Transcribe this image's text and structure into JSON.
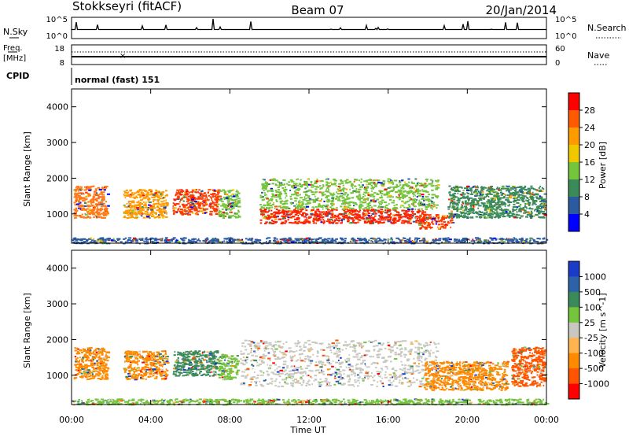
{
  "header": {
    "radar": "Stokkseyri (fitACF)",
    "beam": "Beam 07",
    "date": "20/Jan/2014"
  },
  "top_panels": {
    "nsky_label": "N.Sky",
    "nsearch_label": "N.Search",
    "nsky_ticks": [
      "10^5",
      "10^0"
    ],
    "nsearch_ticks": [
      "10^5",
      "10^0"
    ],
    "freq_label": "Freq.",
    "freq_unit": "[MHz]",
    "freq_ticks": [
      "18",
      "8"
    ],
    "nave_label": "Nave",
    "nave_ticks": [
      "60",
      "0"
    ],
    "cpid_label": "CPID",
    "cpid_text": "normal (fast) 151"
  },
  "chart_data": [
    {
      "type": "heatmap",
      "name": "power-panel",
      "ylabel": "Slant Range [km]",
      "x_range_hours": [
        0,
        24
      ],
      "ylim": [
        180,
        4500
      ],
      "y_ticks": [
        1000,
        2000,
        3000,
        4000
      ],
      "colorbar": {
        "label": "Power [dB]",
        "ticks": [
          "28",
          "24",
          "20",
          "16",
          "12",
          "8",
          "4"
        ],
        "colors": [
          "#ff0000",
          "#ff5a00",
          "#ff9a00",
          "#f0c800",
          "#74c43c",
          "#3a8a5a",
          "#2c5aa0",
          "#0000ff"
        ]
      },
      "regions": [
        {
          "t0": 0.1,
          "t1": 1.8,
          "r0": 900,
          "r1": 1800,
          "color": "#ff7a1a"
        },
        {
          "t0": 2.6,
          "t1": 4.8,
          "r0": 900,
          "r1": 1700,
          "color": "#ff9a00"
        },
        {
          "t0": 5.1,
          "t1": 7.4,
          "r0": 1000,
          "r1": 1700,
          "color": "#ff3a00"
        },
        {
          "t0": 7.4,
          "t1": 8.4,
          "r0": 900,
          "r1": 1700,
          "color": "#74c43c"
        },
        {
          "t0": 9.5,
          "t1": 17.8,
          "r0": 750,
          "r1": 1150,
          "color": "#ff2200"
        },
        {
          "t0": 9.5,
          "t1": 18.5,
          "r0": 1150,
          "r1": 2000,
          "color": "#74c43c"
        },
        {
          "t0": 17.5,
          "t1": 19.2,
          "r0": 600,
          "r1": 1000,
          "color": "#ff3a00"
        },
        {
          "t0": 19.0,
          "t1": 23.9,
          "r0": 900,
          "r1": 1800,
          "color": "#3a8a5a"
        },
        {
          "t0": 0.0,
          "t1": 24.0,
          "r0": 190,
          "r1": 350,
          "color": "#2c5aa0"
        }
      ]
    },
    {
      "type": "heatmap",
      "name": "velocity-panel",
      "ylabel": "Slant Range [km]",
      "xlabel": "Time UT",
      "x_range_hours": [
        0,
        24
      ],
      "x_ticks": [
        "00:00",
        "04:00",
        "08:00",
        "12:00",
        "16:00",
        "20:00",
        "00:00"
      ],
      "ylim": [
        180,
        4500
      ],
      "y_ticks": [
        1000,
        2000,
        3000,
        4000
      ],
      "colorbar": {
        "label": "Velocity [m s^-1]",
        "ticks": [
          "1000",
          "500",
          "100",
          "25",
          "-25",
          "-100",
          "-500",
          "-1000"
        ],
        "colors": [
          "#1a3cc8",
          "#2e62a8",
          "#3a8a5a",
          "#74c43c",
          "#c8c8c0",
          "#ffb450",
          "#ff8a00",
          "#ff5500",
          "#ff0000"
        ]
      },
      "regions": [
        {
          "t0": 0.1,
          "t1": 1.8,
          "r0": 900,
          "r1": 1800,
          "color": "#ff8a00"
        },
        {
          "t0": 2.6,
          "t1": 4.8,
          "r0": 900,
          "r1": 1700,
          "color": "#ff8a00"
        },
        {
          "t0": 5.1,
          "t1": 7.4,
          "r0": 1000,
          "r1": 1700,
          "color": "#3a8a5a"
        },
        {
          "t0": 7.4,
          "t1": 8.4,
          "r0": 900,
          "r1": 1600,
          "color": "#74c43c"
        },
        {
          "t0": 8.5,
          "t1": 18.5,
          "r0": 700,
          "r1": 2000,
          "color": "#c8c8c0"
        },
        {
          "t0": 17.8,
          "t1": 22.0,
          "r0": 600,
          "r1": 1400,
          "color": "#ff8a00"
        },
        {
          "t0": 22.2,
          "t1": 23.9,
          "r0": 700,
          "r1": 1800,
          "color": "#ff5500"
        },
        {
          "t0": 0.0,
          "t1": 24.0,
          "r0": 190,
          "r1": 350,
          "color": "#74c43c"
        }
      ]
    }
  ]
}
